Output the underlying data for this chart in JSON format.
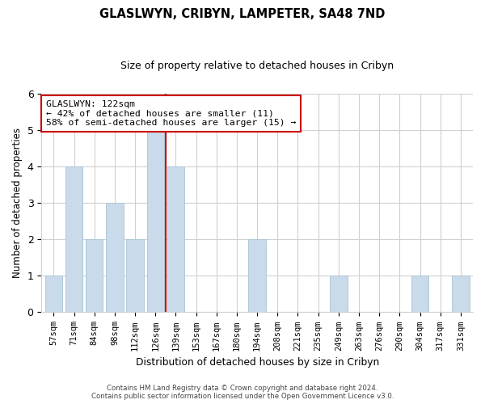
{
  "title1": "GLASLWYN, CRIBYN, LAMPETER, SA48 7ND",
  "title2": "Size of property relative to detached houses in Cribyn",
  "xlabel": "Distribution of detached houses by size in Cribyn",
  "ylabel": "Number of detached properties",
  "categories": [
    "57sqm",
    "71sqm",
    "84sqm",
    "98sqm",
    "112sqm",
    "126sqm",
    "139sqm",
    "153sqm",
    "167sqm",
    "180sqm",
    "194sqm",
    "208sqm",
    "221sqm",
    "235sqm",
    "249sqm",
    "263sqm",
    "276sqm",
    "290sqm",
    "304sqm",
    "317sqm",
    "331sqm"
  ],
  "values": [
    1,
    4,
    2,
    3,
    2,
    5,
    4,
    0,
    0,
    0,
    2,
    0,
    0,
    0,
    1,
    0,
    0,
    0,
    1,
    0,
    1
  ],
  "bar_color": "#c9daea",
  "bar_edgecolor": "#b0c8d8",
  "vline_x_index": 6,
  "vline_color": "#cc0000",
  "annotation_text": "GLASLWYN: 122sqm\n← 42% of detached houses are smaller (11)\n58% of semi-detached houses are larger (15) →",
  "annotation_box_edgecolor": "#cc0000",
  "annotation_box_facecolor": "#ffffff",
  "ylim": [
    0,
    6
  ],
  "yticks": [
    0,
    1,
    2,
    3,
    4,
    5,
    6
  ],
  "footer1": "Contains HM Land Registry data © Crown copyright and database right 2024.",
  "footer2": "Contains public sector information licensed under the Open Government Licence v3.0.",
  "bg_color": "#ffffff",
  "grid_color": "#d0d0d0"
}
